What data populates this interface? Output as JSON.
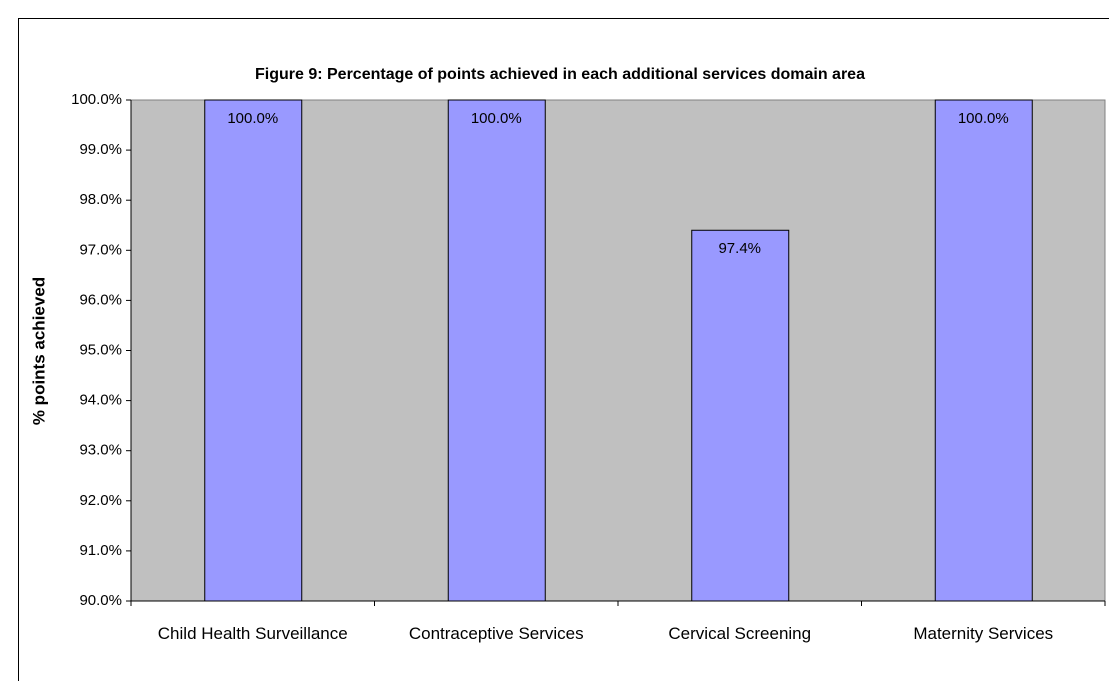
{
  "chart_data": {
    "type": "bar",
    "title": "Figure 9: Percentage of points achieved in each additional services domain area",
    "y_label": "% points achieved",
    "categories": [
      "Child Health Surveillance",
      "Contraceptive Services",
      "Cervical Screening",
      "Maternity Services"
    ],
    "values": [
      100,
      100,
      97.4,
      100
    ],
    "value_labels": [
      "100.0%",
      "100.0%",
      "97.4%",
      "100.0%"
    ],
    "color": "#9999ff",
    "ylim": [
      90,
      100
    ],
    "yticks": [
      {
        "value": 90,
        "label": "90.0%"
      },
      {
        "value": 91,
        "label": "91.0%"
      },
      {
        "value": 92,
        "label": "92.0%"
      },
      {
        "value": 93,
        "label": "93.0%"
      },
      {
        "value": 94,
        "label": "94.0%"
      },
      {
        "value": 95,
        "label": "95.0%"
      },
      {
        "value": 96,
        "label": "96.0%"
      },
      {
        "value": 97,
        "label": "97.0%"
      },
      {
        "value": 98,
        "label": "98.0%"
      },
      {
        "value": 99,
        "label": "99.0%"
      },
      {
        "value": 100,
        "label": "100.0%"
      }
    ],
    "grid": false
  }
}
